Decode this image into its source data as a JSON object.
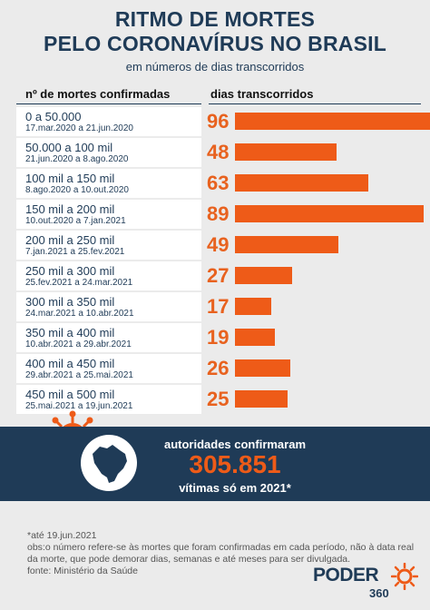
{
  "title_line1": "RITMO DE MORTES",
  "title_line2": "PELO CORONAVÍRUS NO BRASIL",
  "subtitle": "em números de dias transcorridos",
  "column_left": "nº de mortes confirmadas",
  "column_right": "dias transcorridos",
  "rows": [
    {
      "range": "0 a 50.000",
      "dates": "17.mar.2020 a 21.jun.2020",
      "days_label": "96"
    },
    {
      "range": "50.000 a 100 mil",
      "dates": "21.jun.2020 a 8.ago.2020",
      "days_label": "48"
    },
    {
      "range": "100 mil a 150 mil",
      "dates": "8.ago.2020 a 10.out.2020",
      "days_label": "63"
    },
    {
      "range": "150 mil a 200 mil",
      "dates": "10.out.2020 a 7.jan.2021",
      "days_label": "89"
    },
    {
      "range": "200 mil a 250 mil",
      "dates": "7.jan.2021 a 25.fev.2021",
      "days_label": "49"
    },
    {
      "range": "250 mil a 300 mil",
      "dates": "25.fev.2021 a 24.mar.2021",
      "days_label": "27"
    },
    {
      "range": "300 mil a 350 mil",
      "dates": "24.mar.2021 a 10.abr.2021",
      "days_label": "17"
    },
    {
      "range": "350 mil a 400 mil",
      "dates": "10.abr.2021 a 29.abr.2021",
      "days_label": "19"
    },
    {
      "range": "400 mil a 450 mil",
      "dates": "29.abr.2021 a 25.mai.2021",
      "days_label": "26"
    },
    {
      "range": "450 mil a 500 mil",
      "dates": "25.mai.2021 a 19.jun.2021",
      "days_label": "25"
    }
  ],
  "chart_data": {
    "type": "bar",
    "orientation": "horizontal",
    "categories": [
      "0 a 50.000",
      "50.000 a 100 mil",
      "100 mil a 150 mil",
      "150 mil a 200 mil",
      "200 mil a 250 mil",
      "250 mil a 300 mil",
      "300 mil a 350 mil",
      "350 mil a 400 mil",
      "400 mil a 450 mil",
      "450 mil a 500 mil"
    ],
    "values": [
      96,
      48,
      63,
      89,
      49,
      27,
      17,
      19,
      26,
      25
    ],
    "title": "RITMO DE MORTES PELO CORONAVÍRUS NO BRASIL",
    "xlabel": "dias transcorridos",
    "ylabel": "nº de mortes confirmadas",
    "xlim": [
      0,
      96
    ]
  },
  "band": {
    "label": "autoridades confirmaram",
    "number": "305.851",
    "sub": "vítimas só em 2021*"
  },
  "notes": {
    "line1": "*até 19.jun.2021",
    "line2": "obs:o número refere-se às mortes que foram confirmadas em cada período, não à data real da morte, que pode demorar dias, semanas e até meses para ser divulgada.",
    "line3": "fonte: Ministério da Saúde"
  },
  "logo": {
    "word": "PODER",
    "number": "360"
  },
  "colors": {
    "navy": "#1f3b57",
    "orange": "#ee5b18",
    "background": "#ebebeb"
  }
}
